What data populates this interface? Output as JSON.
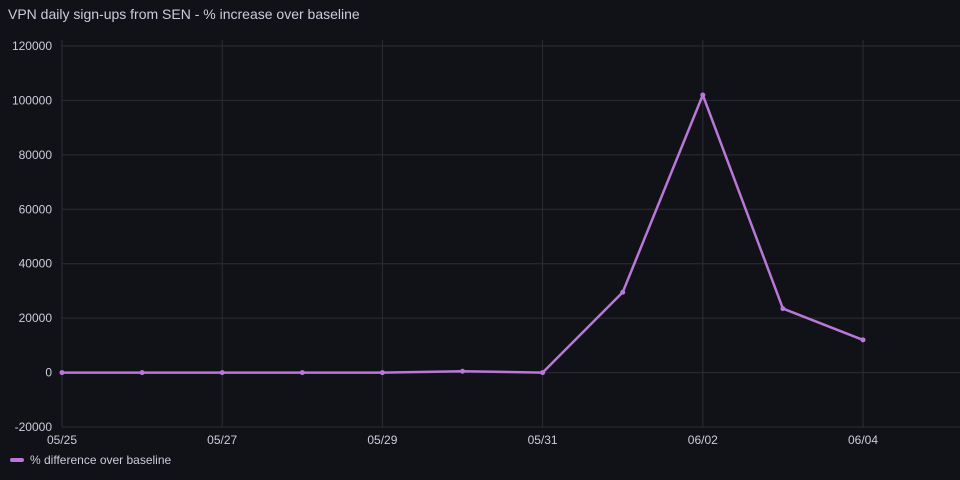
{
  "panel": {
    "title": "VPN daily sign-ups from SEN - % increase over baseline"
  },
  "colors": {
    "background": "#111217",
    "series": "#b877d9",
    "grid": "#2c2e33",
    "text": "#ccccdc"
  },
  "chart_data": {
    "type": "line",
    "title": "VPN daily sign-ups from SEN - % increase over baseline",
    "xlabel": "",
    "ylabel": "",
    "x": [
      "05/25",
      "05/26",
      "05/27",
      "05/28",
      "05/29",
      "05/30",
      "05/31",
      "06/01",
      "06/02",
      "06/03",
      "06/04"
    ],
    "x_tick_labels": [
      "05/25",
      "05/27",
      "05/29",
      "05/31",
      "06/02",
      "06/04"
    ],
    "y_tick_labels": [
      "-20000",
      "0",
      "20000",
      "40000",
      "60000",
      "80000",
      "100000",
      "120000"
    ],
    "ylim": [
      -20000,
      120000
    ],
    "grid": true,
    "legend_position": "bottom-left",
    "series": [
      {
        "name": "% difference over baseline",
        "values": [
          0,
          0,
          0,
          0,
          0,
          500,
          0,
          29500,
          102000,
          23500,
          12000
        ]
      }
    ]
  }
}
